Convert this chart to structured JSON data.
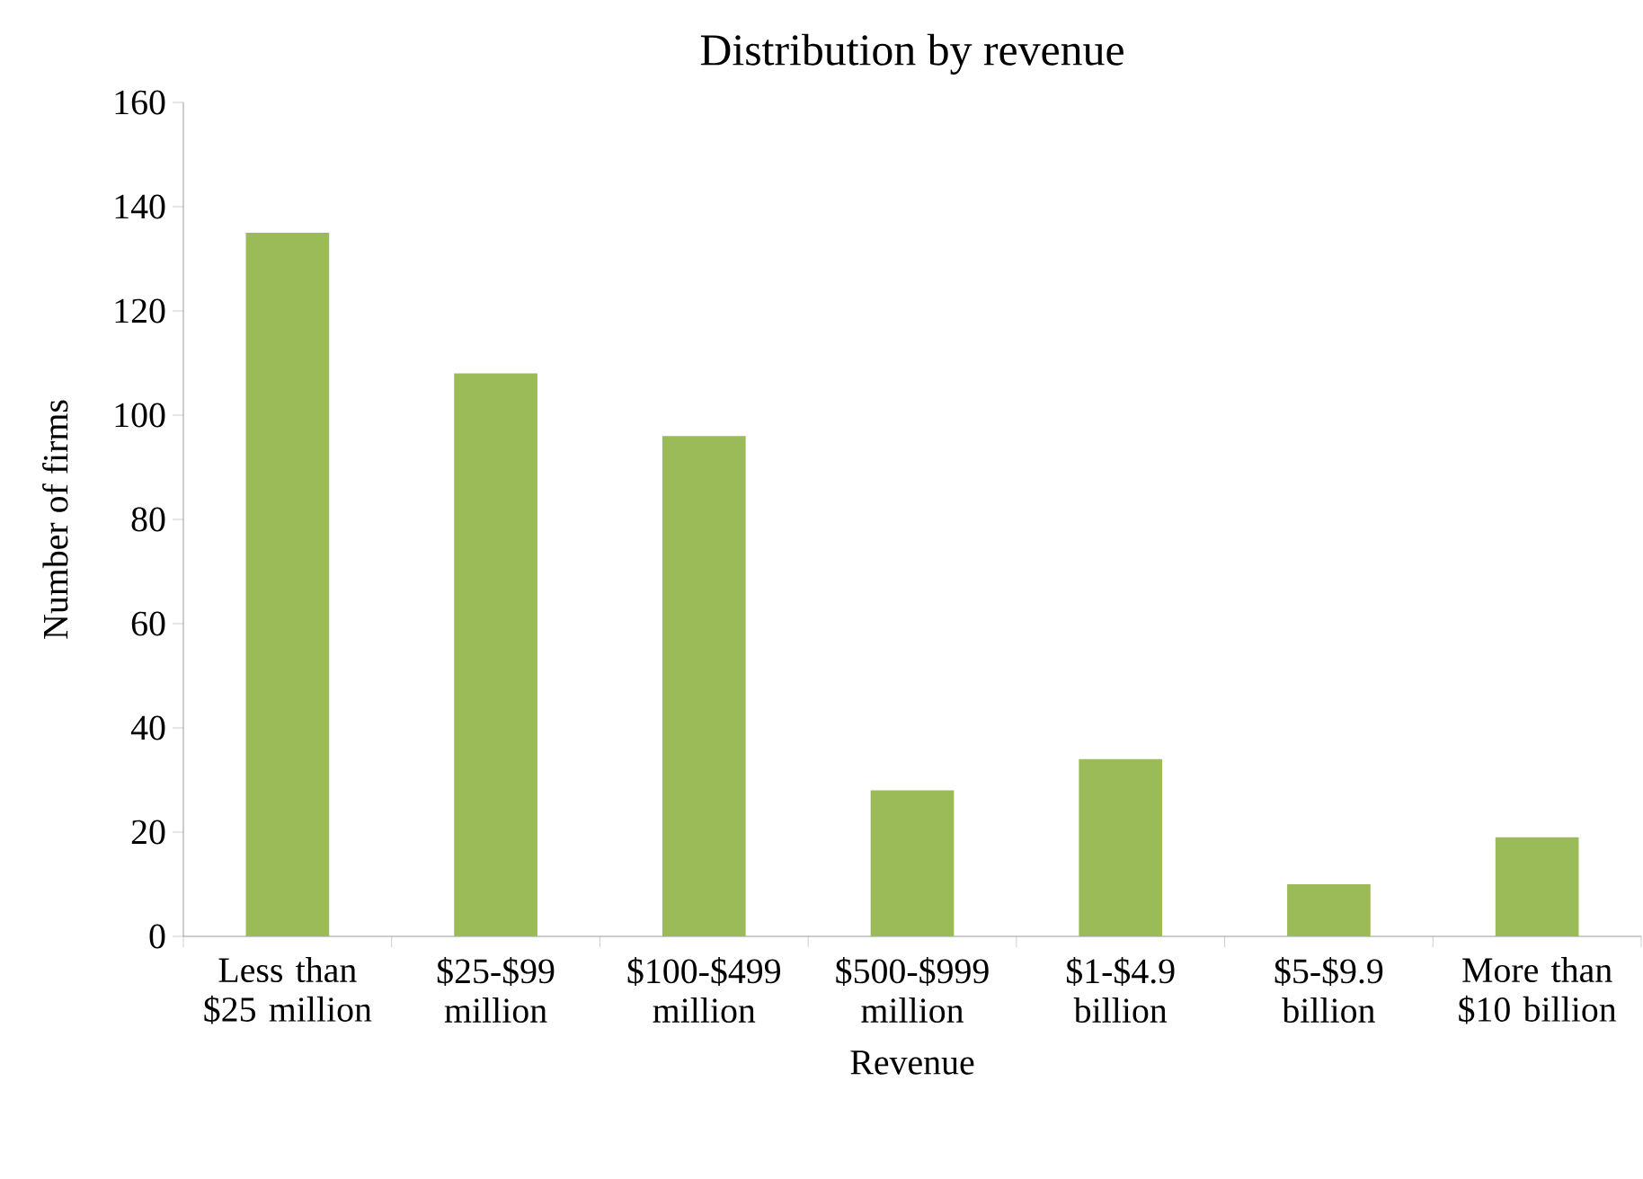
{
  "chart_data": {
    "type": "bar",
    "title": "Distribution by revenue",
    "xlabel": "Revenue",
    "ylabel": "Number of firms",
    "categories": [
      "Less than $25 million",
      "$25-$99 million",
      "$100-$499 million",
      "$500-$999 million",
      "$1-$4.9 billion",
      "$5-$9.9 billion",
      "More than $10 billion"
    ],
    "values": [
      135,
      108,
      96,
      28,
      34,
      10,
      19
    ],
    "color": "#9bbb59",
    "ylim": [
      0,
      160
    ],
    "yticks": [
      0,
      20,
      40,
      60,
      80,
      100,
      120,
      140,
      160
    ],
    "grid": false
  }
}
